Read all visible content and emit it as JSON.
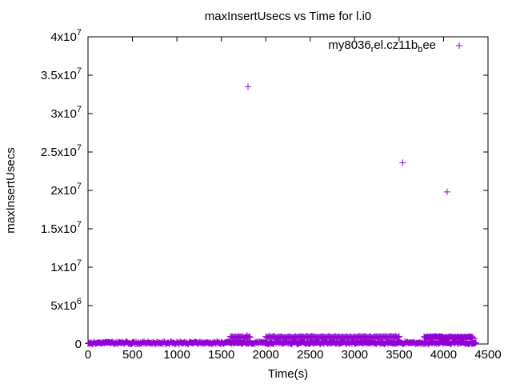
{
  "chart_data": {
    "type": "scatter",
    "title": "maxInsertUsecs vs Time for l.i0",
    "xlabel": "Time(s)",
    "ylabel": "maxInsertUsecs",
    "xlim": [
      0,
      4500
    ],
    "ylim": [
      0,
      40000000
    ],
    "x_ticks": [
      {
        "value": 0,
        "label": "0"
      },
      {
        "value": 500,
        "label": "500"
      },
      {
        "value": 1000,
        "label": "1000"
      },
      {
        "value": 1500,
        "label": "1500"
      },
      {
        "value": 2000,
        "label": "2000"
      },
      {
        "value": 2500,
        "label": "2500"
      },
      {
        "value": 3000,
        "label": "3000"
      },
      {
        "value": 3500,
        "label": "3500"
      },
      {
        "value": 4000,
        "label": "4000"
      },
      {
        "value": 4500,
        "label": "4500"
      }
    ],
    "y_ticks": [
      {
        "value": 0,
        "base": "0",
        "exp": ""
      },
      {
        "value": 5000000,
        "base": "5x10",
        "exp": "6"
      },
      {
        "value": 10000000,
        "base": "1x10",
        "exp": "7"
      },
      {
        "value": 15000000,
        "base": "1.5x10",
        "exp": "7"
      },
      {
        "value": 20000000,
        "base": "2x10",
        "exp": "7"
      },
      {
        "value": 25000000,
        "base": "2.5x10",
        "exp": "7"
      },
      {
        "value": 30000000,
        "base": "3x10",
        "exp": "7"
      },
      {
        "value": 35000000,
        "base": "3.5x10",
        "exp": "7"
      },
      {
        "value": 40000000,
        "base": "4x10",
        "exp": "7"
      }
    ],
    "grid": false,
    "legend_position": "top-right",
    "series": [
      {
        "name": "my8036_rel.cz11b_bee",
        "legend_parts": [
          "my8036",
          "r",
          "el.cz11b",
          "b",
          "ee"
        ],
        "color": "#9400d3",
        "marker": "plus",
        "bands": [
          {
            "x_start": 0,
            "x_end": 4370,
            "y_min": 0,
            "y_max": 300000
          },
          {
            "x_start": 1600,
            "x_end": 1830,
            "y_min": 800000,
            "y_max": 1000000
          },
          {
            "x_start": 2000,
            "x_end": 3500,
            "y_min": 800000,
            "y_max": 1000000
          },
          {
            "x_start": 3780,
            "x_end": 4330,
            "y_min": 800000,
            "y_max": 1000000
          }
        ],
        "points": [
          {
            "x": 1800,
            "y": 33500000
          },
          {
            "x": 3540,
            "y": 23600000
          },
          {
            "x": 4040,
            "y": 19800000
          },
          {
            "x": 1790,
            "y": 1100000
          },
          {
            "x": 3500,
            "y": 1000000
          },
          {
            "x": 4350,
            "y": 700000
          }
        ]
      }
    ]
  }
}
